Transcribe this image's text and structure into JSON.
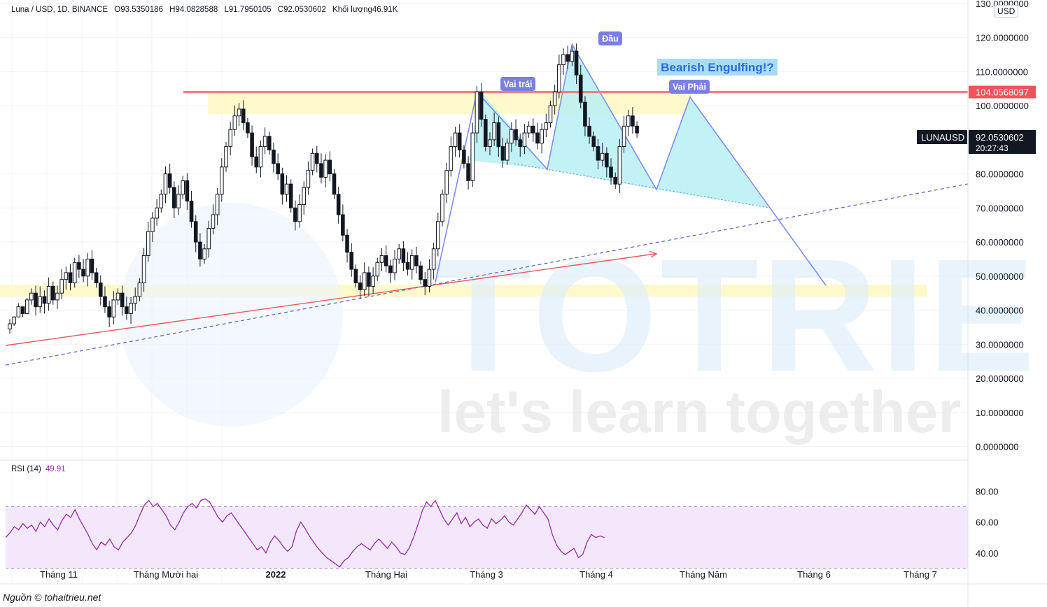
{
  "header": {
    "symbol": "Luna / USD, 1D, BINANCE",
    "open": "O93.5350186",
    "high": "H94.0828588",
    "low": "L91.7950105",
    "close": "C92.0530602",
    "volume": "Khối lượng46.91K"
  },
  "currency": "USD",
  "source_note": "Nguồn © tohaitrieu.net",
  "watermark": {
    "big": "TOTRIEU",
    "tagline": "let's learn together"
  },
  "chart_data": {
    "type": "candlestick",
    "price_axis": {
      "range": [
        -4,
        131
      ],
      "ticks": [
        "130.0000000",
        "120.0000000",
        "110.0000000",
        "100.0000000",
        "80.0000000",
        "70.0000000",
        "60.0000000",
        "50.0000000",
        "40.0000000",
        "30.0000000",
        "20.0000000",
        "10.0000000",
        "0.0000000"
      ],
      "tick_values": [
        130,
        120,
        110,
        100,
        80,
        70,
        60,
        50,
        40,
        30,
        20,
        10,
        0
      ]
    },
    "time_axis": {
      "labels": [
        "Tháng 11",
        "Tháng Mười hai",
        "2022",
        "Tháng Hai",
        "Tháng 3",
        "Tháng 4",
        "Tháng Năm",
        "Tháng 6",
        "Tháng 7"
      ],
      "label_dates": [
        "2021-11-01",
        "2021-12-01",
        "2022-01-01",
        "2022-02-01",
        "2022-03-01",
        "2022-04-01",
        "2022-05-01",
        "2022-06-01",
        "2022-07-01"
      ],
      "bold": [
        false,
        false,
        true,
        false,
        false,
        false,
        false,
        false,
        false
      ]
    },
    "series_close": [
      [
        -5,
        36
      ],
      [
        -4,
        38
      ],
      [
        -3,
        41
      ],
      [
        -2,
        39
      ],
      [
        -1,
        43
      ],
      [
        0,
        45
      ],
      [
        1,
        41
      ],
      [
        2,
        44
      ],
      [
        3,
        42
      ],
      [
        4,
        47
      ],
      [
        5,
        43
      ],
      [
        6,
        45
      ],
      [
        7,
        49
      ],
      [
        8,
        51
      ],
      [
        9,
        48
      ],
      [
        10,
        54
      ],
      [
        11,
        52
      ],
      [
        12,
        50
      ],
      [
        13,
        55
      ],
      [
        14,
        51
      ],
      [
        15,
        48
      ],
      [
        16,
        44
      ],
      [
        17,
        41
      ],
      [
        18,
        38
      ],
      [
        19,
        43
      ],
      [
        20,
        45
      ],
      [
        21,
        41
      ],
      [
        22,
        39
      ],
      [
        23,
        42
      ],
      [
        24,
        44
      ],
      [
        25,
        48
      ],
      [
        26,
        56
      ],
      [
        27,
        63
      ],
      [
        28,
        67
      ],
      [
        29,
        70
      ],
      [
        30,
        74
      ],
      [
        31,
        80
      ],
      [
        32,
        76
      ],
      [
        33,
        70
      ],
      [
        34,
        74
      ],
      [
        35,
        78
      ],
      [
        36,
        72
      ],
      [
        37,
        66
      ],
      [
        38,
        60
      ],
      [
        39,
        55
      ],
      [
        40,
        58
      ],
      [
        41,
        64
      ],
      [
        42,
        68
      ],
      [
        43,
        74
      ],
      [
        44,
        82
      ],
      [
        45,
        88
      ],
      [
        46,
        93
      ],
      [
        47,
        97
      ],
      [
        48,
        99
      ],
      [
        49,
        95
      ],
      [
        50,
        92
      ],
      [
        51,
        85
      ],
      [
        52,
        82
      ],
      [
        53,
        88
      ],
      [
        54,
        91
      ],
      [
        55,
        87
      ],
      [
        56,
        83
      ],
      [
        57,
        80
      ],
      [
        58,
        74
      ],
      [
        59,
        77
      ],
      [
        60,
        70
      ],
      [
        61,
        66
      ],
      [
        62,
        71
      ],
      [
        63,
        76
      ],
      [
        64,
        81
      ],
      [
        65,
        86
      ],
      [
        66,
        83
      ],
      [
        67,
        79
      ],
      [
        68,
        84
      ],
      [
        69,
        80
      ],
      [
        70,
        74
      ],
      [
        71,
        68
      ],
      [
        72,
        62
      ],
      [
        73,
        57
      ],
      [
        74,
        52
      ],
      [
        75,
        48
      ],
      [
        76,
        46
      ],
      [
        77,
        51
      ],
      [
        78,
        47
      ],
      [
        79,
        50
      ],
      [
        80,
        54
      ],
      [
        81,
        56
      ],
      [
        82,
        53
      ],
      [
        83,
        51
      ],
      [
        84,
        55
      ],
      [
        85,
        58
      ],
      [
        86,
        54
      ],
      [
        87,
        52
      ],
      [
        88,
        56
      ],
      [
        89,
        53
      ],
      [
        90,
        49
      ],
      [
        91,
        47
      ],
      [
        92,
        52
      ],
      [
        93,
        58
      ],
      [
        94,
        66
      ],
      [
        95,
        74
      ],
      [
        96,
        81
      ],
      [
        97,
        88
      ],
      [
        98,
        92
      ],
      [
        99,
        87
      ],
      [
        100,
        83
      ],
      [
        101,
        78
      ],
      [
        102,
        92
      ],
      [
        103,
        104
      ],
      [
        104,
        96
      ],
      [
        105,
        88
      ],
      [
        106,
        90
      ],
      [
        107,
        95
      ],
      [
        108,
        88
      ],
      [
        109,
        84
      ],
      [
        110,
        89
      ],
      [
        111,
        93
      ],
      [
        112,
        90
      ],
      [
        113,
        88
      ],
      [
        114,
        92
      ],
      [
        115,
        94
      ],
      [
        116,
        92
      ],
      [
        117,
        89
      ],
      [
        118,
        93
      ],
      [
        119,
        95
      ],
      [
        120,
        100
      ],
      [
        121,
        104
      ],
      [
        122,
        112
      ],
      [
        123,
        115
      ],
      [
        124,
        113
      ],
      [
        125,
        116
      ],
      [
        126,
        109
      ],
      [
        127,
        101
      ],
      [
        128,
        94
      ],
      [
        129,
        91
      ],
      [
        130,
        88
      ],
      [
        131,
        84
      ],
      [
        132,
        86
      ],
      [
        133,
        82
      ],
      [
        134,
        79
      ],
      [
        135,
        77
      ],
      [
        136,
        88
      ],
      [
        137,
        94
      ],
      [
        138,
        97
      ],
      [
        139,
        94
      ],
      [
        140,
        92
      ]
    ],
    "current_price": "92.0530602",
    "current_label": "LUNAUSD",
    "countdown": "20:27:43",
    "resistance_level": "104.0568097",
    "annotations": [
      "Vai trái",
      "Đầu",
      "Vai Phải",
      "Bearish Engulfing!?"
    ],
    "rsi": {
      "label": "RSI (14)",
      "value": "49.91",
      "range": [
        20,
        100
      ],
      "ticks": [
        "80.00",
        "60.00",
        "40.00"
      ],
      "tick_values": [
        80,
        60,
        40
      ],
      "band": [
        30,
        70
      ],
      "values": [
        50,
        53,
        57,
        55,
        59,
        56,
        58,
        54,
        60,
        57,
        62,
        58,
        55,
        61,
        65,
        63,
        68,
        62,
        57,
        52,
        46,
        42,
        47,
        45,
        49,
        44,
        42,
        47,
        50,
        53,
        58,
        65,
        71,
        74,
        70,
        72,
        68,
        64,
        58,
        55,
        60,
        66,
        70,
        72,
        69,
        74,
        75,
        73,
        68,
        63,
        60,
        64,
        66,
        62,
        58,
        54,
        50,
        46,
        42,
        44,
        40,
        47,
        51,
        48,
        44,
        41,
        44,
        54,
        60,
        56,
        51,
        47,
        43,
        40,
        37,
        35,
        33,
        31,
        35,
        37,
        41,
        44,
        46,
        44,
        42,
        46,
        49,
        46,
        43,
        47,
        44,
        40,
        39,
        43,
        50,
        58,
        67,
        73,
        70,
        74,
        68,
        62,
        58,
        62,
        66,
        59,
        63,
        57,
        60,
        62,
        58,
        56,
        62,
        59,
        61,
        64,
        60,
        58,
        62,
        66,
        71,
        68,
        65,
        70,
        66,
        62,
        52,
        45,
        41,
        39,
        41,
        43,
        37,
        39,
        47,
        52,
        50,
        51,
        49.91
      ]
    }
  }
}
